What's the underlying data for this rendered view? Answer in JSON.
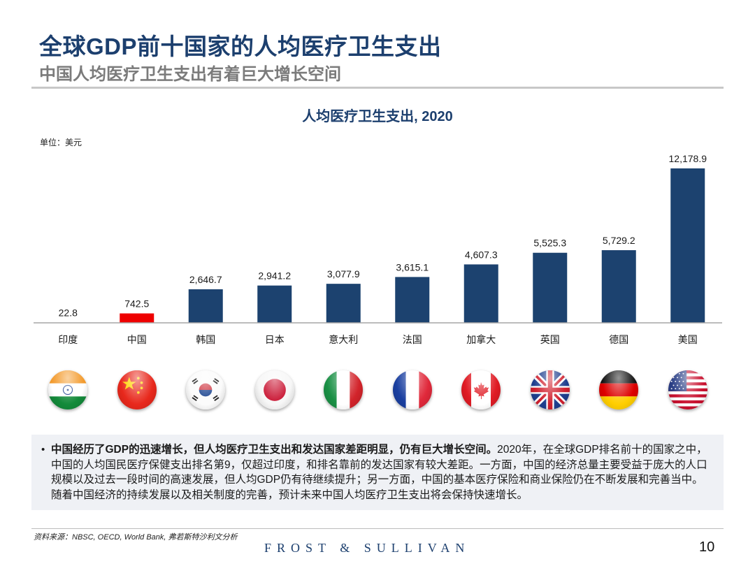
{
  "header": {
    "title": "全球GDP前十国家的人均医疗卫生支出",
    "subtitle": "中国人均医疗卫生支出有着巨大增长空间"
  },
  "unit_label": "单位：美元",
  "chart_data": {
    "type": "bar",
    "title": "人均医疗卫生支出, 2020",
    "xlabel": "",
    "ylabel": "单位：美元",
    "categories": [
      "印度",
      "中国",
      "韩国",
      "日本",
      "意大利",
      "法国",
      "加拿大",
      "英国",
      "德国",
      "美国"
    ],
    "values": [
      22.8,
      742.5,
      2646.7,
      2941.2,
      3077.9,
      3615.1,
      4607.3,
      5525.3,
      5729.2,
      12178.9
    ],
    "value_labels": [
      "22.8",
      "742.5",
      "2,646.7",
      "2,941.2",
      "3,077.9",
      "3,615.1",
      "4,607.3",
      "5,525.3",
      "5,729.2",
      "12,178.9"
    ],
    "highlight_index": 1,
    "colors": {
      "default": "#1c426f",
      "highlight": "#ee0000",
      "axis": "#a6a6a6"
    },
    "ylim": [
      0,
      12178.9
    ],
    "grid": false,
    "legend": "none"
  },
  "flags": [
    {
      "country": "印度",
      "icon": "india-flag-icon"
    },
    {
      "country": "中国",
      "icon": "china-flag-icon"
    },
    {
      "country": "韩国",
      "icon": "south-korea-flag-icon"
    },
    {
      "country": "日本",
      "icon": "japan-flag-icon"
    },
    {
      "country": "意大利",
      "icon": "italy-flag-icon"
    },
    {
      "country": "法国",
      "icon": "france-flag-icon"
    },
    {
      "country": "加拿大",
      "icon": "canada-flag-icon"
    },
    {
      "country": "英国",
      "icon": "uk-flag-icon"
    },
    {
      "country": "德国",
      "icon": "germany-flag-icon"
    },
    {
      "country": "美国",
      "icon": "usa-flag-icon"
    }
  ],
  "note": {
    "bullet": "•",
    "bold": "中国经历了GDP的迅速增长，但人均医疗卫生支出和发达国家差距明显，仍有巨大增长空间。",
    "text": "2020年，在全球GDP排名前十的国家之中，中国的人均国民医疗保健支出排名第9，仅超过印度，和排名靠前的发达国家有较大差距。一方面，中国的经济总量主要受益于庞大的人口规模以及过去一段时间的高速发展，但人均GDP仍有待继续提升；另一方面，中国的基本医疗保险和商业保险仍在不断发展和完善当中。随着中国经济的持续发展以及相关制度的完善，预计未来中国人均医疗卫生支出将会保持快速增长。"
  },
  "footer": {
    "source": "资料来源：NBSC, OECD, World Bank, 弗若斯特沙利文分析",
    "brand": "FROST & SULLIVAN",
    "page_number": "10"
  }
}
